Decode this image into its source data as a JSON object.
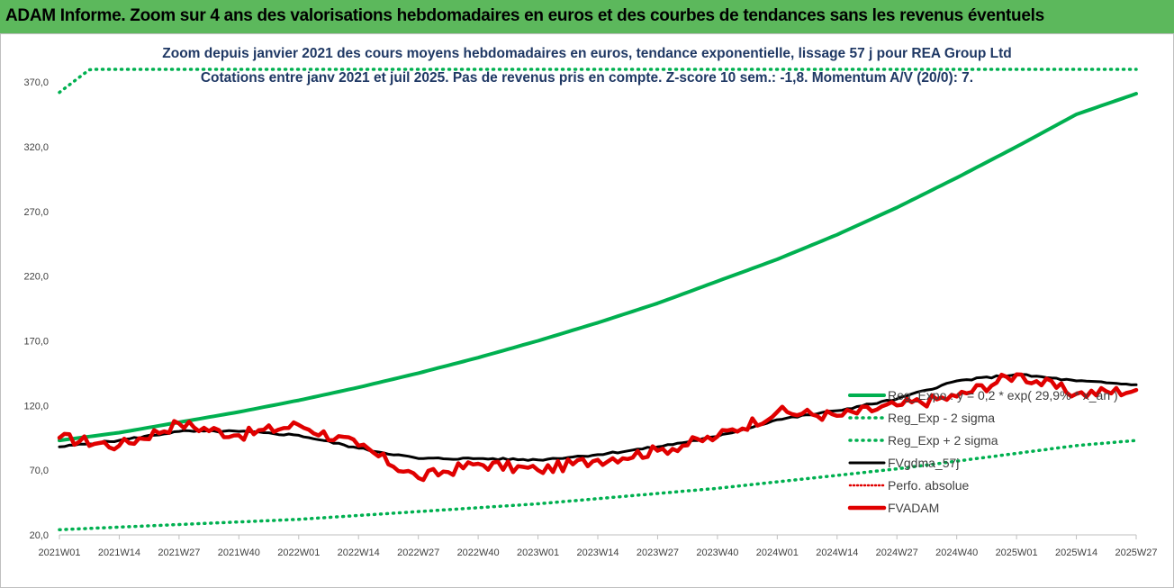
{
  "banner": {
    "title": "ADAM Informe. Zoom sur 4 ans des valorisations hebdomadaires en euros et des courbes de tendances sans les revenus éventuels"
  },
  "colors": {
    "banner": "#5cb85c",
    "reg_expo": "#00b050",
    "fvgdma": "#000000",
    "perfo": "#e00000",
    "fvadam": "#e00000",
    "subtitle": "#1f3864"
  },
  "chart_data": {
    "type": "line",
    "title": "Zoom depuis janvier 2021 des cours moyens hebdomadaires en euros, tendance exponentielle, lissage 57 j pour REA Group Ltd",
    "subtitle": "Cotations entre janv 2021 et juil 2025. Pas de revenus pris en compte. Z-score 10 sem.: -1,8. Momentum A/V (20/0): 7.",
    "ylim": [
      20,
      400
    ],
    "yticks": [
      "20,0",
      "70,0",
      "120,0",
      "170,0",
      "220,0",
      "270,0",
      "320,0",
      "370,0"
    ],
    "ytick_values": [
      20,
      70,
      120,
      170,
      220,
      270,
      320,
      370
    ],
    "xticks": [
      "2021W01",
      "2021W14",
      "2021W27",
      "2021W40",
      "2022W01",
      "2022W14",
      "2022W27",
      "2022W40",
      "2023W01",
      "2023W14",
      "2023W27",
      "2023W40",
      "2024W01",
      "2024W14",
      "2024W27",
      "2024W40",
      "2025W01",
      "2025W14",
      "2025W27"
    ],
    "legend_position": "right",
    "series": [
      {
        "name": "Reg_Expo : y = 0,2 * exp( 29,9% * x_an )",
        "style": "solid",
        "values": [
          93,
          99,
          107,
          115,
          124,
          134,
          145,
          157,
          170,
          184,
          199,
          216,
          233,
          252,
          273,
          296,
          320,
          345,
          361
        ]
      },
      {
        "name": "Reg_Exp - 2 sigma",
        "style": "dotted",
        "values": [
          24,
          26,
          28,
          30,
          32,
          35,
          38,
          41,
          44,
          48,
          52,
          56,
          61,
          66,
          71,
          77,
          83,
          89,
          93
        ]
      },
      {
        "name": "Reg_Exp + 2 sigma",
        "style": "dotted",
        "values": [
          362,
          397,
          397,
          397,
          397,
          397,
          397,
          397,
          397,
          397,
          397,
          397,
          397,
          397,
          397,
          397,
          397,
          397,
          397
        ]
      },
      {
        "name": "FVgdma_57j",
        "style": "solid",
        "values": [
          88,
          93,
          100,
          100,
          97,
          87,
          79,
          79,
          78,
          82,
          88,
          96,
          109,
          116,
          125,
          139,
          144,
          139,
          136
        ]
      },
      {
        "name": "Perfo. absolue",
        "style": "dotted",
        "values": []
      },
      {
        "name": "FVADAM",
        "style": "solid",
        "values": [
          95,
          89,
          106,
          97,
          105,
          89,
          64,
          75,
          70,
          78,
          85,
          96,
          115,
          112,
          120,
          127,
          144,
          129,
          132
        ]
      }
    ]
  }
}
